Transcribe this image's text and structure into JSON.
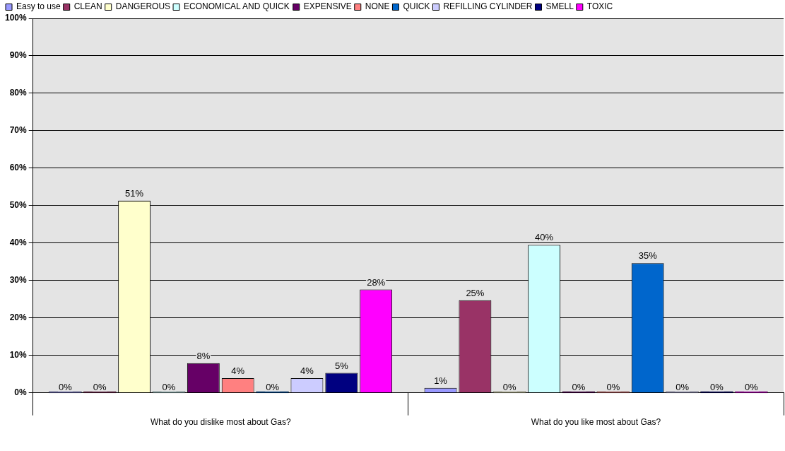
{
  "chart_data": {
    "type": "bar",
    "categories": [
      "What do you dislike most about Gas?",
      "What do you like most about Gas?"
    ],
    "series": [
      {
        "name": "Easy to use",
        "color": "#9999ff",
        "values": [
          0,
          1.3
        ],
        "value_labels": [
          "0%",
          "1%"
        ]
      },
      {
        "name": "CLEAN",
        "color": "#993366",
        "values": [
          0,
          24.7
        ],
        "value_labels": [
          "0%",
          "25%"
        ]
      },
      {
        "name": "DANGEROUS",
        "color": "#ffffcc",
        "values": [
          51.3,
          0
        ],
        "value_labels": [
          "51%",
          "0%"
        ]
      },
      {
        "name": "ECONOMICAL AND QUICK",
        "color": "#ccffff",
        "values": [
          0,
          39.5
        ],
        "value_labels": [
          "0%",
          "40%"
        ]
      },
      {
        "name": "EXPENSIVE",
        "color": "#660066",
        "values": [
          7.9,
          0
        ],
        "value_labels": [
          "8%",
          "0%"
        ]
      },
      {
        "name": "NONE",
        "color": "#ff8080",
        "values": [
          3.9,
          0
        ],
        "value_labels": [
          "4%",
          "0%"
        ]
      },
      {
        "name": "QUICK",
        "color": "#0066cc",
        "values": [
          0,
          34.6
        ],
        "value_labels": [
          "0%",
          "35%"
        ]
      },
      {
        "name": "REFILLING CYLINDER",
        "color": "#ccccff",
        "values": [
          3.9,
          0
        ],
        "value_labels": [
          "4%",
          "0%"
        ]
      },
      {
        "name": "SMELL",
        "color": "#000080",
        "values": [
          5.3,
          0
        ],
        "value_labels": [
          "5%",
          "0%"
        ]
      },
      {
        "name": "TOXIC",
        "color": "#ff00ff",
        "values": [
          27.6,
          0
        ],
        "value_labels": [
          "28%",
          "0%"
        ]
      }
    ],
    "ylim": [
      0,
      100
    ],
    "yticks": [
      {
        "value": 0,
        "label": "0%"
      },
      {
        "value": 10,
        "label": "10%"
      },
      {
        "value": 20,
        "label": "20%"
      },
      {
        "value": 30,
        "label": "30%"
      },
      {
        "value": 40,
        "label": "40%"
      },
      {
        "value": 50,
        "label": "50%"
      },
      {
        "value": 60,
        "label": "60%"
      },
      {
        "value": 70,
        "label": "70%"
      },
      {
        "value": 80,
        "label": "80%"
      },
      {
        "value": 90,
        "label": "90%"
      },
      {
        "value": 100,
        "label": "100%"
      }
    ],
    "grid": "y",
    "legend": "top"
  }
}
